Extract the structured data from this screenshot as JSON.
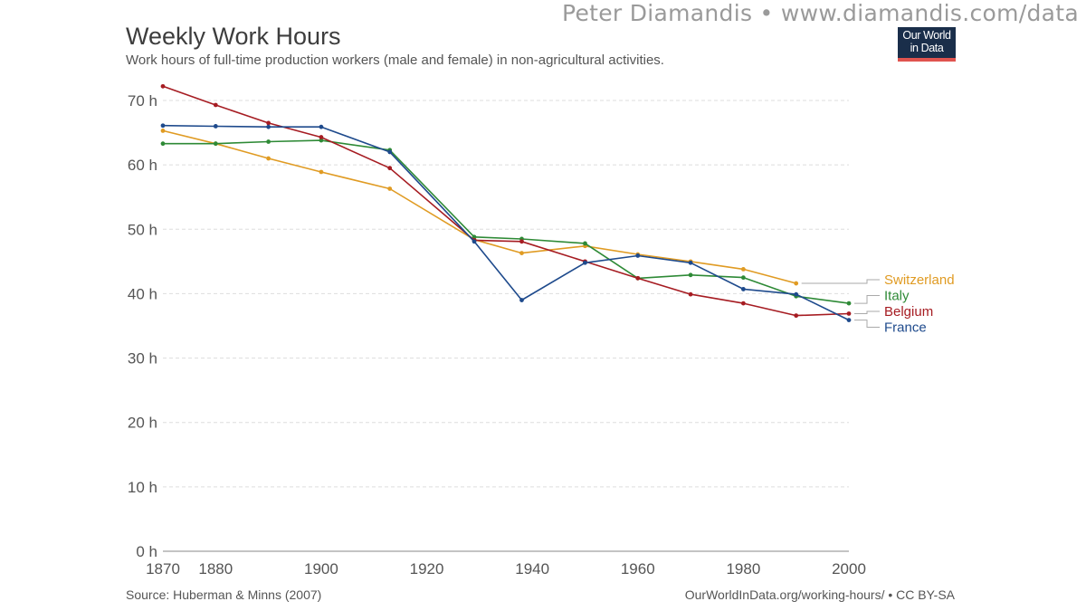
{
  "watermark": "Peter Diamandis  •  www.diamandis.com/data",
  "logo": {
    "line1": "Our World",
    "line2": "in Data"
  },
  "footer": {
    "source": "Source: Huberman & Minns (2007)",
    "license": "OurWorldInData.org/working-hours/ • CC BY-SA"
  },
  "chart_data": {
    "type": "line",
    "title": "Weekly Work Hours",
    "subtitle": "Work hours of full-time production workers (male and female) in non-agricultural activities.",
    "xlabel": "",
    "ylabel": "",
    "xlim": [
      1870,
      2000
    ],
    "ylim": [
      0,
      70
    ],
    "x_ticks": [
      1870,
      1880,
      1900,
      1920,
      1940,
      1960,
      1980,
      2000
    ],
    "y_ticks": [
      0,
      10,
      20,
      30,
      40,
      50,
      60,
      70
    ],
    "y_tick_labels": [
      "0 h",
      "10 h",
      "20 h",
      "30 h",
      "40 h",
      "50 h",
      "60 h",
      "70 h"
    ],
    "grid": "horizontal dashed",
    "legend_position": "right",
    "series": [
      {
        "name": "Switzerland",
        "color": "#e09b23",
        "x": [
          1870,
          1880,
          1890,
          1900,
          1913,
          1929,
          1938,
          1950,
          1960,
          1970,
          1980,
          1990
        ],
        "values": [
          65.3,
          63.3,
          61.0,
          58.9,
          56.3,
          48.4,
          46.3,
          47.4,
          46.1,
          45.0,
          43.8,
          41.6
        ]
      },
      {
        "name": "Italy",
        "color": "#2e8a36",
        "x": [
          1870,
          1880,
          1890,
          1900,
          1913,
          1929,
          1938,
          1950,
          1960,
          1970,
          1980,
          1990,
          2000
        ],
        "values": [
          63.3,
          63.3,
          63.6,
          63.8,
          62.3,
          48.8,
          48.5,
          47.8,
          42.4,
          42.9,
          42.5,
          39.6,
          38.5
        ]
      },
      {
        "name": "Belgium",
        "color": "#a61c22",
        "x": [
          1870,
          1880,
          1890,
          1900,
          1913,
          1929,
          1938,
          1950,
          1960,
          1970,
          1980,
          1990,
          2000
        ],
        "values": [
          72.2,
          69.3,
          66.5,
          64.3,
          59.5,
          48.3,
          48.1,
          45.0,
          42.4,
          39.9,
          38.5,
          36.6,
          36.9
        ]
      },
      {
        "name": "France",
        "color": "#1e4a8c",
        "x": [
          1870,
          1880,
          1890,
          1900,
          1913,
          1929,
          1938,
          1950,
          1960,
          1970,
          1980,
          1990,
          2000
        ],
        "values": [
          66.1,
          66.0,
          65.9,
          65.9,
          62.0,
          48.1,
          39.0,
          44.8,
          45.9,
          44.8,
          40.7,
          39.9,
          35.9
        ]
      }
    ]
  }
}
